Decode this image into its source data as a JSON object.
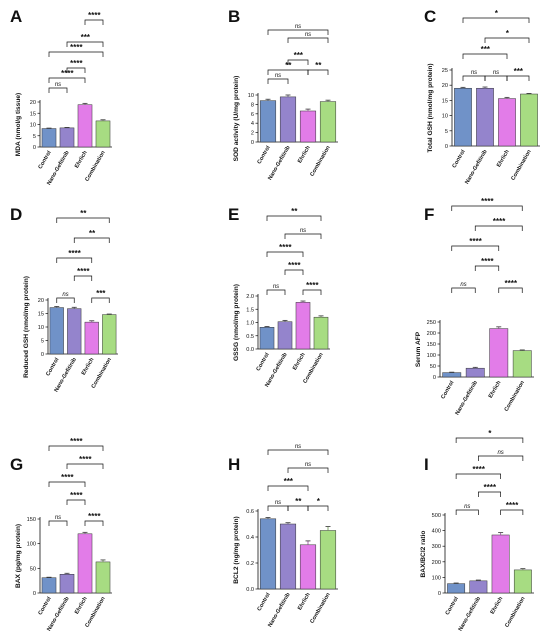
{
  "colors": {
    "control": "#7092c8",
    "nano": "#9484cc",
    "ehrlich": "#e27ce8",
    "combination": "#a7dc82"
  },
  "chart_data": [
    {
      "panel": "A",
      "type": "bar",
      "categories": [
        "Control",
        "Nano-Gefitinib",
        "Ehrlich",
        "Combination"
      ],
      "values": [
        8.2,
        8.5,
        18.8,
        11.6
      ],
      "errors": [
        0.2,
        0.2,
        0.6,
        0.5
      ],
      "ylabel": "MDA (nmol/g tissue)",
      "ylim": [
        0,
        20
      ],
      "yticks": [
        0,
        5,
        10,
        15,
        20
      ],
      "comparisons": [
        {
          "from": 0,
          "to": 1,
          "label": "ns"
        },
        {
          "from": 0,
          "to": 2,
          "label": "****"
        },
        {
          "from": 1,
          "to": 2,
          "label": "****"
        },
        {
          "from": 0,
          "to": 3,
          "label": "****"
        },
        {
          "from": 1,
          "to": 3,
          "label": "***"
        },
        {
          "from": 2,
          "to": 3,
          "label": "****"
        }
      ]
    },
    {
      "panel": "B",
      "type": "bar",
      "categories": [
        "Control",
        "Nano-Gefitinib",
        "Ehrlich",
        "Combination"
      ],
      "values": [
        8.8,
        9.6,
        6.6,
        8.6
      ],
      "errors": [
        0.3,
        0.4,
        0.4,
        0.3
      ],
      "ylabel": "SOD activity (U/mg protein)",
      "ylim": [
        0,
        10
      ],
      "yticks": [
        0,
        2,
        4,
        6,
        8,
        10
      ],
      "comparisons": [
        {
          "from": 0,
          "to": 1,
          "label": "ns"
        },
        {
          "from": 0,
          "to": 2,
          "label": "**"
        },
        {
          "from": 1,
          "to": 2,
          "label": "***"
        },
        {
          "from": 2,
          "to": 3,
          "label": "**"
        },
        {
          "from": 1,
          "to": 3,
          "label": "ns"
        },
        {
          "from": 0,
          "to": 3,
          "label": "ns"
        }
      ]
    },
    {
      "panel": "C",
      "type": "bar",
      "categories": [
        "Control",
        "Nano-Gefitinib",
        "Ehrlich",
        "Combination"
      ],
      "values": [
        19.0,
        19.0,
        15.6,
        17.1
      ],
      "errors": [
        0.3,
        0.4,
        0.4,
        0.2
      ],
      "ylabel": "Total GSH (nmol/mg protein)",
      "ylim": [
        0,
        25
      ],
      "yticks": [
        0,
        5,
        10,
        15,
        20,
        25
      ],
      "comparisons": [
        {
          "from": 0,
          "to": 1,
          "label": "ns"
        },
        {
          "from": 1,
          "to": 2,
          "label": "ns"
        },
        {
          "from": 2,
          "to": 3,
          "label": "***"
        },
        {
          "from": 0,
          "to": 2,
          "label": "***"
        },
        {
          "from": 1,
          "to": 3,
          "label": "*"
        },
        {
          "from": 0,
          "to": 3,
          "label": "*"
        }
      ]
    },
    {
      "panel": "D",
      "type": "bar",
      "categories": [
        "Control",
        "Nano-Gefitinib",
        "Ehrlich",
        "Combination"
      ],
      "values": [
        17.2,
        16.8,
        11.8,
        14.6
      ],
      "errors": [
        0.4,
        0.5,
        0.5,
        0.2
      ],
      "ylabel": "Reduced GSH (nmol/mg protein)",
      "ylim": [
        0,
        20
      ],
      "yticks": [
        0,
        5,
        10,
        15,
        20
      ],
      "comparisons": [
        {
          "from": 0,
          "to": 1,
          "label": "ns"
        },
        {
          "from": 2,
          "to": 3,
          "label": "***"
        },
        {
          "from": 1,
          "to": 2,
          "label": "****"
        },
        {
          "from": 0,
          "to": 2,
          "label": "****"
        },
        {
          "from": 1,
          "to": 3,
          "label": "**"
        },
        {
          "from": 0,
          "to": 3,
          "label": "**"
        }
      ]
    },
    {
      "panel": "E",
      "type": "bar",
      "categories": [
        "Control",
        "Nano-Gefitinib",
        "Ehrlich",
        "Combination"
      ],
      "values": [
        0.82,
        1.03,
        1.76,
        1.2
      ],
      "errors": [
        0.03,
        0.05,
        0.05,
        0.05
      ],
      "ylabel": "GSSG (nmol/mg protein)",
      "ylim": [
        0,
        2.0
      ],
      "yticks": [
        0,
        0.5,
        1.0,
        1.5,
        2.0
      ],
      "yticklabels": [
        "0.0",
        "0.5",
        "1.0",
        "1.5",
        "2.0"
      ],
      "comparisons": [
        {
          "from": 0,
          "to": 1,
          "label": "ns"
        },
        {
          "from": 2,
          "to": 3,
          "label": "****"
        },
        {
          "from": 1,
          "to": 2,
          "label": "****"
        },
        {
          "from": 0,
          "to": 2,
          "label": "****"
        },
        {
          "from": 1,
          "to": 3,
          "label": "ns"
        },
        {
          "from": 0,
          "to": 3,
          "label": "**"
        }
      ]
    },
    {
      "panel": "F",
      "type": "bar",
      "categories": [
        "Control",
        "Nano-Gefitinib",
        "Ehrlich",
        "Combination"
      ],
      "values": [
        20,
        40,
        220,
        120
      ],
      "errors": [
        2,
        4,
        8,
        3
      ],
      "ylabel": "Serum AFP",
      "ylim": [
        0,
        250
      ],
      "yticks": [
        0,
        50,
        100,
        150,
        200,
        250
      ],
      "comparisons": [
        {
          "from": 0,
          "to": 1,
          "label": "ns"
        },
        {
          "from": 2,
          "to": 3,
          "label": "****"
        },
        {
          "from": 1,
          "to": 2,
          "label": "****"
        },
        {
          "from": 0,
          "to": 2,
          "label": "****"
        },
        {
          "from": 1,
          "to": 3,
          "label": "****"
        },
        {
          "from": 0,
          "to": 3,
          "label": "****"
        }
      ]
    },
    {
      "panel": "G",
      "type": "bar",
      "categories": [
        "Control",
        "Nano-Gefitinib",
        "Ehrlich",
        "Combination"
      ],
      "values": [
        31,
        38,
        120,
        63
      ],
      "errors": [
        1,
        2,
        3,
        4
      ],
      "ylabel": "BAX (pg/mg protein)",
      "ylim": [
        0,
        150
      ],
      "yticks": [
        0,
        50,
        100,
        150
      ],
      "comparisons": [
        {
          "from": 0,
          "to": 1,
          "label": "ns"
        },
        {
          "from": 2,
          "to": 3,
          "label": "****"
        },
        {
          "from": 1,
          "to": 2,
          "label": "****"
        },
        {
          "from": 0,
          "to": 2,
          "label": "****"
        },
        {
          "from": 1,
          "to": 3,
          "label": "****"
        },
        {
          "from": 0,
          "to": 3,
          "label": "****"
        }
      ]
    },
    {
      "panel": "H",
      "type": "bar",
      "categories": [
        "Control",
        "Nano-Gefitinib",
        "Ehrlich",
        "Combination"
      ],
      "values": [
        0.54,
        0.5,
        0.34,
        0.45
      ],
      "errors": [
        0.01,
        0.01,
        0.03,
        0.03
      ],
      "ylabel": "BCL2 (ng/mg protein)",
      "ylim": [
        0,
        0.6
      ],
      "yticks": [
        0,
        0.2,
        0.4,
        0.6
      ],
      "yticklabels": [
        "0.0",
        "0.2",
        "0.4",
        "0.6"
      ],
      "comparisons": [
        {
          "from": 0,
          "to": 1,
          "label": "ns"
        },
        {
          "from": 1,
          "to": 2,
          "label": "**"
        },
        {
          "from": 2,
          "to": 3,
          "label": "*"
        },
        {
          "from": 0,
          "to": 2,
          "label": "***"
        },
        {
          "from": 1,
          "to": 3,
          "label": "ns"
        },
        {
          "from": 0,
          "to": 3,
          "label": "ns"
        }
      ]
    },
    {
      "panel": "I",
      "type": "bar",
      "categories": [
        "Control",
        "Nano-Gefitinib",
        "Ehrlich",
        "Combination"
      ],
      "values": [
        60,
        78,
        372,
        148
      ],
      "errors": [
        4,
        5,
        15,
        8
      ],
      "ylabel": "BAX/BCl2 ratio",
      "ylim": [
        0,
        500
      ],
      "yticks": [
        0,
        100,
        200,
        300,
        400,
        500
      ],
      "comparisons": [
        {
          "from": 0,
          "to": 1,
          "label": "ns"
        },
        {
          "from": 2,
          "to": 3,
          "label": "****"
        },
        {
          "from": 1,
          "to": 2,
          "label": "****"
        },
        {
          "from": 0,
          "to": 2,
          "label": "****"
        },
        {
          "from": 1,
          "to": 3,
          "label": "ns"
        },
        {
          "from": 0,
          "to": 3,
          "label": "*"
        }
      ]
    }
  ]
}
